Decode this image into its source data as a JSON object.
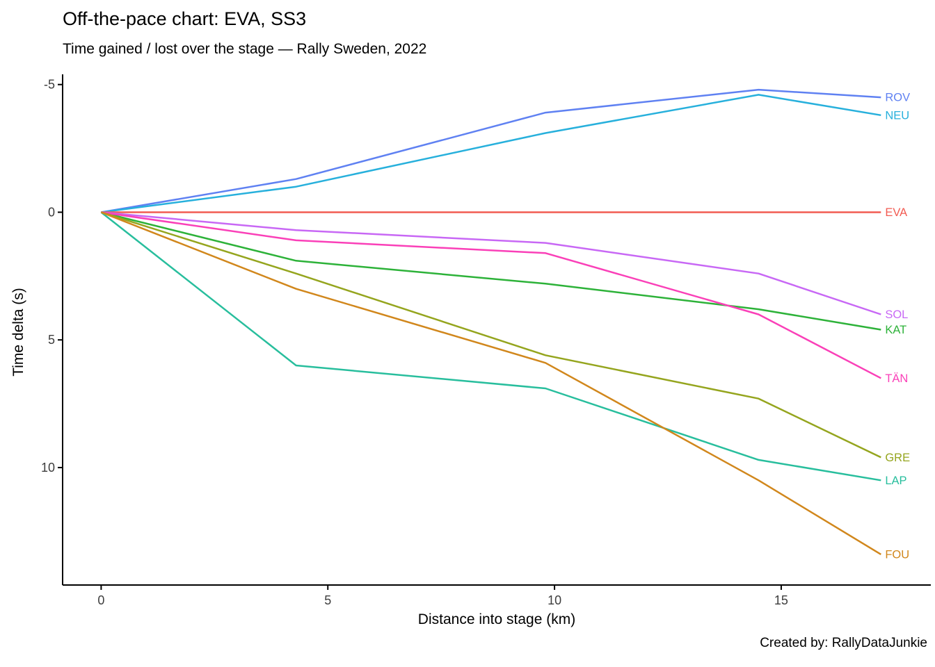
{
  "chart_data": {
    "type": "line",
    "title": "Off-the-pace chart: EVA, SS3",
    "subtitle": "Time gained / lost over the stage — Rally Sweden, 2022",
    "xlabel": "Distance into stage (km)",
    "ylabel": "Time delta (s)",
    "caption": "Created by: RallyDataJunkie",
    "x": [
      0,
      4.3,
      9.8,
      14.5,
      17.2
    ],
    "series": [
      {
        "name": "ROV",
        "color": "#5F81F2",
        "values": [
          0,
          -1.3,
          -3.9,
          -4.8,
          -4.5
        ]
      },
      {
        "name": "NEU",
        "color": "#27B0DC",
        "values": [
          0,
          -1.0,
          -3.1,
          -4.6,
          -3.8
        ]
      },
      {
        "name": "EVA",
        "color": "#F25B52",
        "values": [
          0,
          0,
          0,
          0,
          0
        ]
      },
      {
        "name": "SOL",
        "color": "#C868F5",
        "values": [
          0,
          0.7,
          1.2,
          2.4,
          4.0
        ]
      },
      {
        "name": "KAT",
        "color": "#2DB239",
        "values": [
          0,
          1.9,
          2.8,
          3.8,
          4.6
        ]
      },
      {
        "name": "TÄN",
        "color": "#FA40B8",
        "values": [
          0,
          1.1,
          1.6,
          4.0,
          6.5
        ]
      },
      {
        "name": "GRE",
        "color": "#95A51E",
        "values": [
          0,
          2.4,
          5.6,
          7.3,
          9.6
        ]
      },
      {
        "name": "LAP",
        "color": "#28BE9D",
        "values": [
          0,
          6.0,
          6.9,
          9.7,
          10.5
        ]
      },
      {
        "name": "FOU",
        "color": "#D1871C",
        "values": [
          0,
          3.0,
          5.9,
          10.5,
          13.4
        ]
      }
    ],
    "x_ticks": [
      0,
      5,
      10,
      15
    ],
    "y_ticks": [
      -5,
      0,
      5,
      10
    ],
    "xlim": [
      -0.85,
      18.3
    ],
    "ylim": [
      -5.4,
      14.6
    ],
    "y_axis_reversed": true,
    "grid": false,
    "legend_position": "line-end-labels",
    "axis_color": "#000000",
    "tick_text_color": "#3d3d3d"
  }
}
